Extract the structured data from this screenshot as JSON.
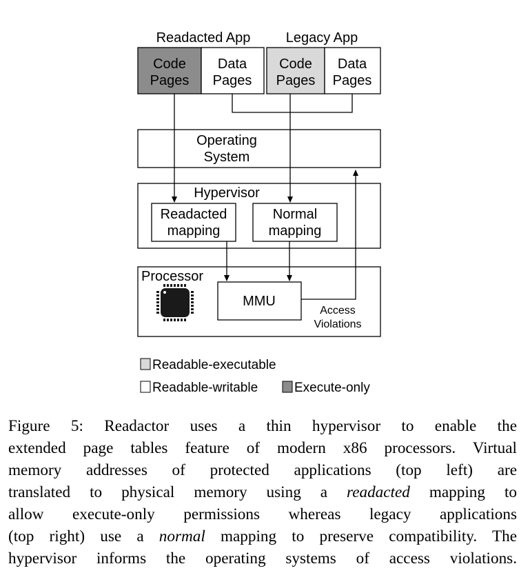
{
  "diagram": {
    "readacted_app": {
      "title": "Readacted App",
      "code_pages": [
        "Code",
        "Pages"
      ],
      "data_pages": [
        "Data",
        "Pages"
      ]
    },
    "legacy_app": {
      "title": "Legacy App",
      "code_pages": [
        "Code",
        "Pages"
      ],
      "data_pages": [
        "Data",
        "Pages"
      ]
    },
    "operating_system": [
      "Operating",
      "System"
    ],
    "hypervisor": {
      "title": "Hypervisor",
      "readacted_mapping": [
        "Readacted",
        "mapping"
      ],
      "normal_mapping": [
        "Normal",
        "mapping"
      ]
    },
    "processor": {
      "title": "Processor",
      "mmu": "MMU",
      "access_violations": [
        "Access",
        "Violations"
      ]
    },
    "legend": {
      "readable_executable": "Readable-executable",
      "readable_writable": "Readable-writable",
      "execute_only": "Execute-only"
    },
    "colors": {
      "execute_only": "#8c8c8c",
      "readable_executable": "#d9d9d9",
      "readable_writable": "#ffffff",
      "line": "#000000"
    }
  },
  "caption": {
    "line1": "Figure 5: Readactor uses a thin hypervisor to enable the",
    "line2": "extended page tables feature of modern x86 processors. Virtual",
    "line3": "memory addresses of protected applications (top left) are",
    "line4_before": "translated to physical memory using a ",
    "line4_em": "readacted",
    "line4_after": " mapping to",
    "line5": "allow execute-only permissions whereas legacy applications",
    "line6_before": "(top right) use a ",
    "line6_em": "normal",
    "line6_after": " mapping to preserve compatibility. The",
    "line7": "hypervisor informs the operating systems of access violations."
  }
}
